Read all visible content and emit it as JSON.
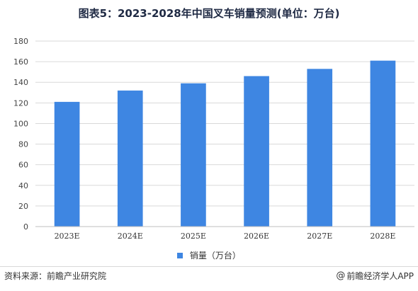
{
  "title": "图表5：2023-2028年中国叉车销量预测(单位：万台)",
  "source": "资料来源：前瞻产业研究院",
  "brand": {
    "icon": "at-icon",
    "text": "前瞻经济学人APP"
  },
  "colors": {
    "bar": "#3e86e2",
    "grid": "#d9d9d9",
    "axis": "#bfbfbf"
  },
  "chart_data": {
    "type": "bar",
    "categories": [
      "2023E",
      "2024E",
      "2025E",
      "2026E",
      "2027E",
      "2028E"
    ],
    "series": [
      {
        "name": "销量（万台）",
        "values": [
          121,
          132,
          139,
          146,
          153,
          161
        ]
      }
    ],
    "yticks": [
      0,
      20,
      40,
      60,
      80,
      100,
      120,
      140,
      160,
      180
    ],
    "ylim": [
      0,
      180
    ],
    "grid": true,
    "legend": "bottom"
  }
}
